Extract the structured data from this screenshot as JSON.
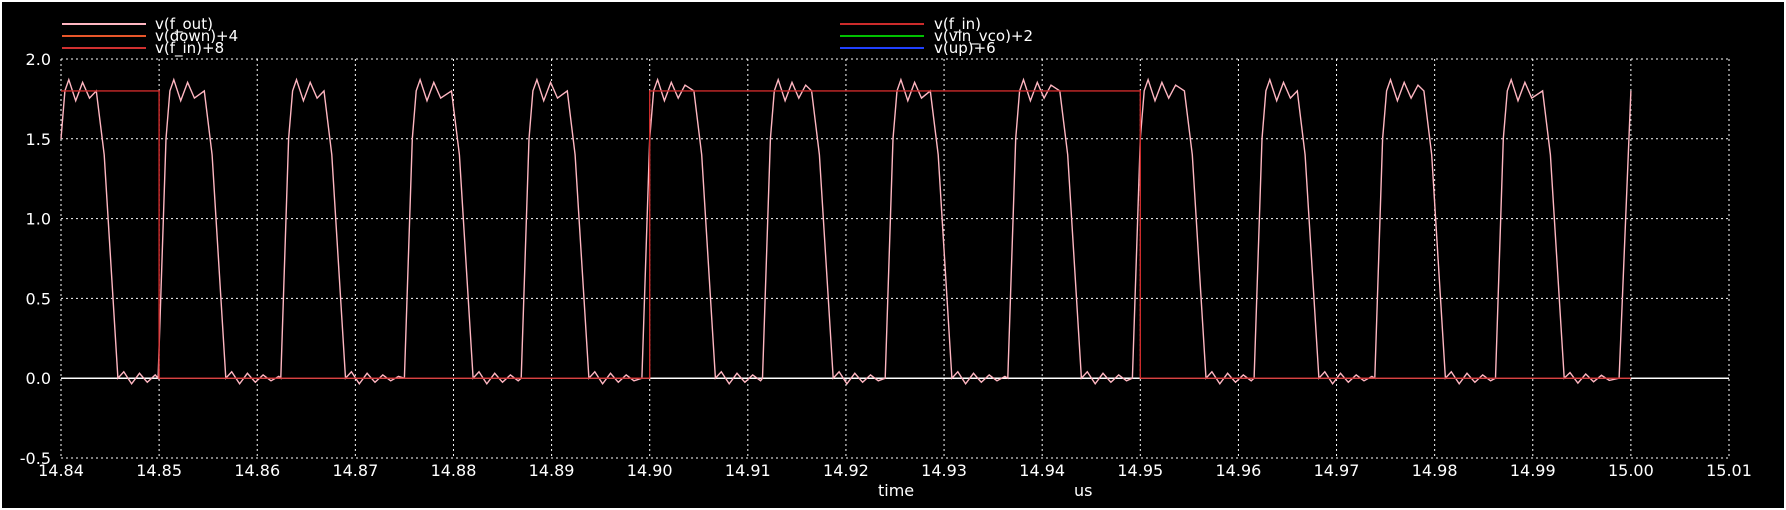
{
  "colors": {
    "background": "#000000",
    "axes": "#ffffff",
    "grid": "#ffffff",
    "f_out": "#ffb6c1",
    "f_in": "#cc2b2b",
    "zero_trace": "#ffffff"
  },
  "chart_data": {
    "type": "line",
    "xlabel": "time",
    "xunit": "us",
    "xlim": [
      14.84,
      15.01
    ],
    "ylim": [
      -0.5,
      2.0
    ],
    "x_ticks": [
      "14.84",
      "14.85",
      "14.86",
      "14.87",
      "14.88",
      "14.89",
      "14.90",
      "14.91",
      "14.92",
      "14.93",
      "14.94",
      "14.95",
      "14.96",
      "14.97",
      "14.98",
      "14.99",
      "15.00",
      "15.01"
    ],
    "y_ticks": [
      "-0.5",
      "0.0",
      "0.5",
      "1.0",
      "1.5",
      "2.0"
    ],
    "grid": true,
    "legend": [
      {
        "label": "v(f_out)",
        "color": "#ffb6c1"
      },
      {
        "label": "v(down)+4",
        "color": "#e8562a"
      },
      {
        "label": "v(f_in)+8",
        "color": "#d03030"
      },
      {
        "label": "v(f_in)",
        "color": "#cc2b2b"
      },
      {
        "label": "v(vin_vco)+2",
        "color": "#00c000"
      },
      {
        "label": "v(up)+6",
        "color": "#2040ff"
      }
    ],
    "series": [
      {
        "name": "v(f_in)",
        "type": "square",
        "low": 0.0,
        "high": 1.8,
        "x": [
          14.84,
          14.85,
          14.85,
          14.9,
          14.9,
          14.95,
          14.95,
          15.0
        ],
        "y": [
          1.8,
          1.8,
          0.0,
          0.0,
          1.8,
          1.8,
          0.0,
          0.0
        ]
      },
      {
        "name": "v(f_out)",
        "type": "square",
        "low": 0.0,
        "high": 1.8,
        "high_intervals": [
          [
            14.84,
            14.8446
          ],
          [
            14.8507,
            14.8556
          ],
          [
            14.8632,
            14.8678
          ],
          [
            14.8758,
            14.8808
          ],
          [
            14.8877,
            14.8926
          ],
          [
            14.9,
            14.9055
          ],
          [
            14.9123,
            14.9175
          ],
          [
            14.9248,
            14.9296
          ],
          [
            14.9373,
            14.9428
          ],
          [
            14.95,
            14.9555
          ],
          [
            14.9624,
            14.967
          ],
          [
            14.9747,
            14.9799
          ],
          [
            14.987,
            14.992
          ]
        ],
        "x_end": 15.0
      },
      {
        "name": "baseline",
        "type": "line",
        "x": [
          15.0,
          15.01
        ],
        "y": [
          0.0,
          0.0
        ]
      }
    ]
  }
}
